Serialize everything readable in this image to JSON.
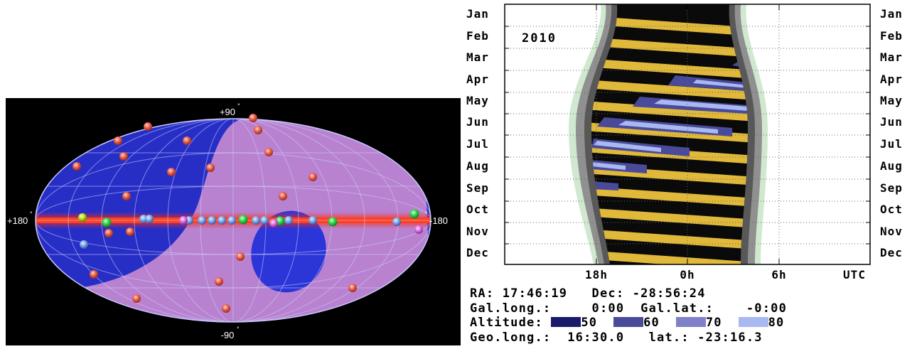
{
  "skymap": {
    "lat_top": "+90",
    "lat_bottom": "-90",
    "lon_left": "+180",
    "lon_right": "-180",
    "degree_symbol": "°",
    "colors": {
      "background": "#000000",
      "sky": "#2b35d8",
      "galactic_plane": "#ff2a10",
      "visible_region": "#c48ad0",
      "marker_red": "#e8604c",
      "marker_blue": "#7ea8e8",
      "marker_green": "#2cd84a",
      "marker_pink": "#e070e0",
      "marker_yellow": "#b8e020"
    }
  },
  "visibility": {
    "year": "2010",
    "months_left": [
      "Jan",
      "Feb",
      "Mar",
      "Apr",
      "May",
      "Jun",
      "Jul",
      "Aug",
      "Sep",
      "Oct",
      "Nov",
      "Dec"
    ],
    "months_right": [
      "Jan",
      "Feb",
      "Mar",
      "Apr",
      "May",
      "Jun",
      "Jul",
      "Aug",
      "Sep",
      "Oct",
      "Nov",
      "Dec"
    ],
    "x_ticks": [
      "18h",
      "0h",
      "6h",
      "UTC"
    ],
    "ra_label": "RA:",
    "ra_value": "17:46:19",
    "dec_label": "Dec:",
    "dec_value": "-28:56:24",
    "gal_long_label": "Gal.long.:",
    "gal_long_value": "0:00",
    "gal_lat_label": "Gal.lat.:",
    "gal_lat_value": "-0:00",
    "altitude_label": "Altitude:",
    "altitude_levels": [
      {
        "value": "50",
        "color": "#1a1a6a"
      },
      {
        "value": "60",
        "color": "#4a4a9a"
      },
      {
        "value": "70",
        "color": "#8080c8"
      },
      {
        "value": "80",
        "color": "#a8b8f0"
      }
    ],
    "geo_long_label": "Geo.long.:",
    "geo_long_value": "16:30.0",
    "geo_lat_label": "lat.:",
    "geo_lat_value": "-23:16.3",
    "colors": {
      "stripe_gold": "#e0b83a",
      "stripe_black": "#0a0a0a",
      "twilight_dark": "#585858",
      "twilight_mid": "#909090",
      "twilight_light": "#cfe8cf",
      "grid": "#888888"
    }
  }
}
